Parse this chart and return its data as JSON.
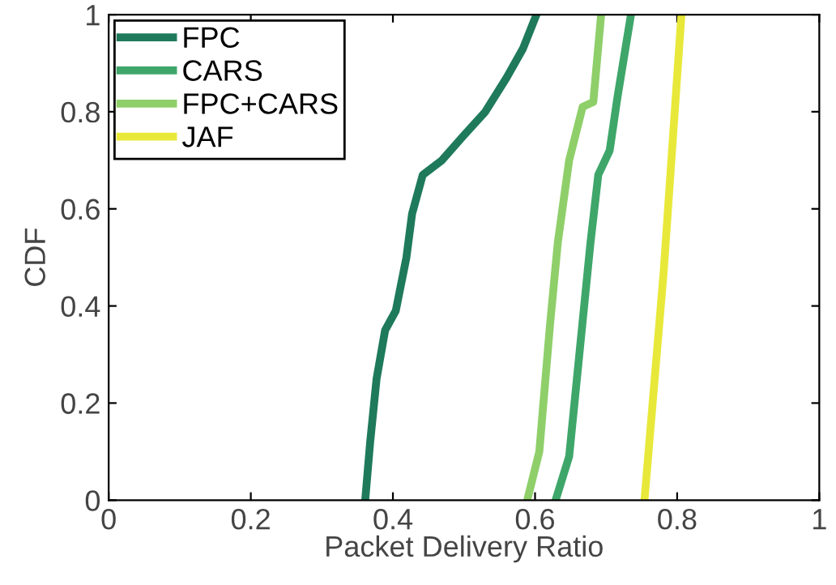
{
  "chart_data": {
    "type": "line",
    "xlabel": "Packet Delivery Ratio",
    "ylabel": "CDF",
    "xlim": [
      0,
      1
    ],
    "ylim": [
      0,
      1
    ],
    "xticks": [
      0,
      0.2,
      0.4,
      0.6,
      0.8,
      1
    ],
    "yticks": [
      0,
      0.2,
      0.4,
      0.6,
      0.8,
      1
    ],
    "grid": false,
    "legend": "top left",
    "series": [
      {
        "name": "FPC",
        "color": "#1f7a5c",
        "x": [
          0.361,
          0.368,
          0.377,
          0.389,
          0.404,
          0.419,
          0.427,
          0.442,
          0.469,
          0.499,
          0.53,
          0.56,
          0.583,
          0.602
        ],
        "values": [
          0,
          0.12,
          0.25,
          0.35,
          0.39,
          0.5,
          0.59,
          0.67,
          0.7,
          0.75,
          0.8,
          0.87,
          0.93,
          1
        ]
      },
      {
        "name": "CARS",
        "color": "#3fa66a",
        "x": [
          0.629,
          0.648,
          0.663,
          0.678,
          0.689,
          0.705,
          0.716,
          0.735
        ],
        "values": [
          0,
          0.09,
          0.31,
          0.53,
          0.67,
          0.72,
          0.83,
          1
        ]
      },
      {
        "name": "FPC+CARS",
        "color": "#8fcf6a",
        "x": [
          0.589,
          0.606,
          0.621,
          0.632,
          0.648,
          0.667,
          0.682,
          0.693
        ],
        "values": [
          0,
          0.1,
          0.36,
          0.53,
          0.7,
          0.81,
          0.82,
          1
        ]
      },
      {
        "name": "JAF",
        "color": "#e8e83a",
        "x": [
          0.754,
          0.781,
          0.806
        ],
        "values": [
          0,
          0.47,
          1
        ]
      }
    ]
  }
}
